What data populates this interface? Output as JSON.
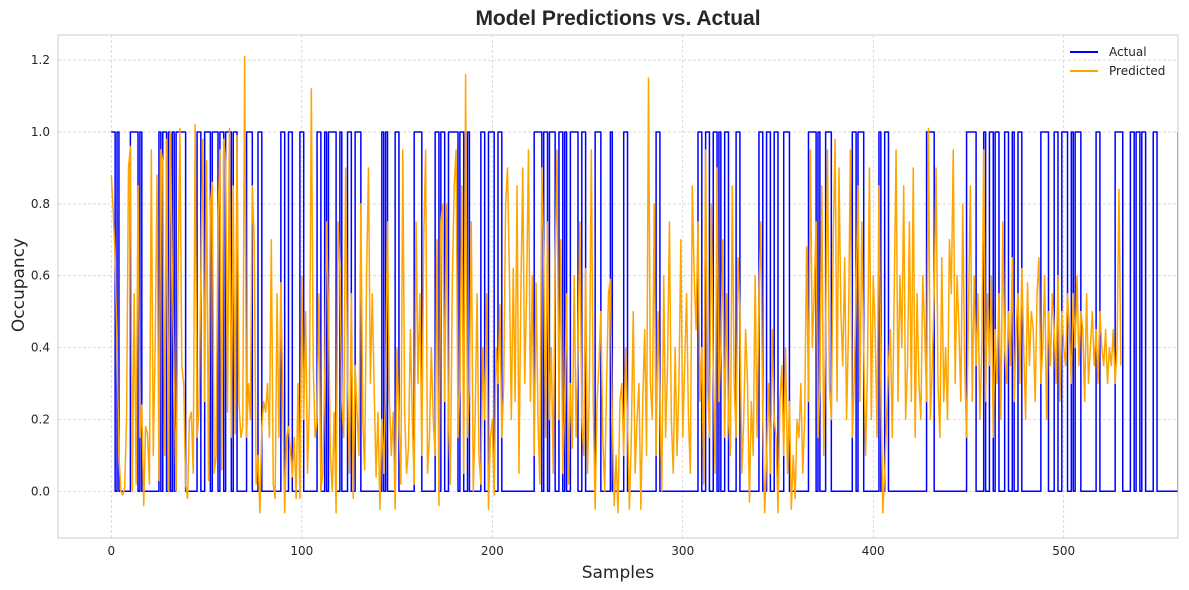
{
  "chart_data": {
    "type": "line",
    "title": "Model Predictions vs. Actual",
    "xlabel": "Samples",
    "ylabel": "Occupancy",
    "xlim": [
      -28,
      560
    ],
    "ylim": [
      -0.13,
      1.27
    ],
    "xticks": [
      0,
      100,
      200,
      300,
      400,
      500
    ],
    "yticks": [
      0.0,
      0.2,
      0.4,
      0.6,
      0.8,
      1.0,
      1.2
    ],
    "grid": true,
    "legend": "top-right",
    "series": [
      {
        "name": "Actual",
        "color": "#0000ff",
        "style": "step",
        "values": [
          1,
          1,
          0,
          1,
          0,
          0,
          0,
          0,
          0,
          0,
          1,
          1,
          1,
          1,
          0,
          1,
          0,
          0,
          0,
          0,
          0,
          0,
          0,
          0,
          0,
          1,
          0,
          1,
          1,
          0,
          1,
          0,
          1,
          0,
          1,
          1,
          1,
          1,
          1,
          0,
          0,
          0,
          0,
          0,
          0,
          1,
          1,
          0,
          0,
          1,
          1,
          1,
          0,
          1,
          1,
          1,
          0,
          1,
          1,
          0,
          1,
          1,
          1,
          0,
          1,
          1,
          0,
          0,
          0,
          0,
          0,
          1,
          1,
          1,
          0,
          0,
          0,
          1,
          1,
          0,
          0,
          0,
          0,
          0,
          0,
          0,
          0,
          0,
          0,
          1,
          1,
          0,
          0,
          1,
          1,
          0,
          0,
          0,
          0,
          1,
          1,
          0,
          0,
          0,
          0,
          0,
          0,
          0,
          1,
          1,
          0,
          0,
          1,
          0,
          1,
          1,
          1,
          1,
          0,
          0,
          1,
          0,
          0,
          0,
          1,
          1,
          0,
          0,
          1,
          1,
          1,
          0,
          0,
          0,
          0,
          0,
          0,
          0,
          0,
          0,
          0,
          0,
          1,
          0,
          1,
          0,
          0,
          0,
          0,
          1,
          1,
          0,
          0,
          0,
          0,
          0,
          0,
          0,
          0,
          1,
          1,
          1,
          1,
          0,
          0,
          0,
          0,
          0,
          0,
          0,
          1,
          1,
          0,
          1,
          1,
          0,
          0,
          1,
          1,
          1,
          1,
          1,
          0,
          1,
          1,
          0,
          0,
          1,
          0,
          0,
          0,
          0,
          0,
          0,
          1,
          1,
          0,
          0,
          1,
          1,
          1,
          0,
          0,
          1,
          1,
          0,
          0,
          0,
          0,
          0,
          0,
          0,
          0,
          0,
          0,
          0,
          0,
          0,
          0,
          0,
          0,
          0,
          1,
          1,
          1,
          1,
          0,
          1,
          1,
          0,
          1,
          1,
          1,
          0,
          0,
          1,
          1,
          0,
          1,
          0,
          0,
          1,
          1,
          1,
          1,
          0,
          0,
          1,
          1,
          0,
          0,
          0,
          0,
          0,
          1,
          1,
          1,
          0,
          0,
          0,
          0,
          0,
          1,
          0,
          0,
          0,
          0,
          0,
          0,
          1,
          1,
          0,
          0,
          0,
          0,
          0,
          0,
          0,
          0,
          0,
          0,
          0,
          0,
          0,
          0,
          0,
          1,
          1,
          0,
          0,
          0,
          0,
          0,
          0,
          0,
          0,
          0,
          0,
          0,
          0,
          0,
          0,
          0,
          0,
          0,
          0,
          0,
          0,
          1,
          1,
          0,
          0,
          1,
          1,
          0,
          0,
          1,
          1,
          0,
          1,
          0,
          0,
          1,
          1,
          0,
          0,
          0,
          0,
          1,
          1,
          0,
          0,
          0,
          0,
          0,
          0,
          0,
          0,
          0,
          0,
          1,
          1,
          0,
          0,
          1,
          1,
          0,
          0,
          1,
          1,
          0,
          0,
          0,
          1,
          1,
          1,
          0,
          0,
          0,
          0,
          0,
          0,
          0,
          0,
          0,
          0,
          1,
          1,
          1,
          1,
          0,
          1,
          0,
          0,
          0,
          1,
          1,
          1,
          0,
          0,
          0,
          0,
          0,
          0,
          0,
          0,
          0,
          0,
          0,
          1,
          1,
          0,
          1,
          1,
          1,
          0,
          0,
          0,
          0,
          0,
          0,
          0,
          0,
          1,
          0,
          0,
          1,
          1,
          0,
          0,
          0,
          0,
          0,
          0,
          0,
          0,
          0,
          0,
          0,
          0,
          0,
          0,
          0,
          0,
          0,
          0,
          0,
          0,
          1,
          1,
          1,
          1,
          0,
          0,
          0,
          0,
          0,
          0,
          0,
          0,
          0,
          0,
          0,
          0,
          0,
          0,
          0,
          0,
          0,
          1,
          1,
          1,
          1,
          1,
          0,
          0,
          0,
          0,
          1,
          0,
          0,
          1,
          1,
          0,
          1,
          1,
          0,
          0,
          0,
          1,
          1,
          0,
          0,
          1,
          0,
          0,
          1,
          1,
          0,
          0,
          0,
          0,
          0,
          0,
          0,
          0,
          0,
          0,
          1,
          1,
          1,
          1,
          0,
          0,
          0,
          1,
          1,
          0,
          0,
          1,
          1,
          1,
          0,
          0,
          1,
          0,
          1,
          1,
          1,
          0,
          0,
          0,
          0,
          0,
          0,
          0,
          0,
          1,
          1,
          0,
          0,
          0,
          0,
          0,
          0,
          0,
          0,
          1,
          1,
          1,
          1,
          0,
          0,
          0,
          0,
          1,
          1,
          0,
          1,
          1,
          0,
          1,
          1,
          0,
          0,
          0,
          0,
          1,
          1,
          0,
          0,
          0,
          0,
          0,
          0,
          0,
          0,
          0,
          0,
          0,
          1,
          1
        ]
      },
      {
        "name": "Predicted",
        "color": "#ffa500",
        "style": "line",
        "values": [
          0.88,
          0.78,
          0.65,
          0.4,
          0.1,
          0.0,
          -0.01,
          0.01,
          0.2,
          0.9,
          0.96,
          0.0,
          0.55,
          0.02,
          0.85,
          0.15,
          0.24,
          -0.04,
          0.18,
          0.16,
          0.02,
          0.95,
          0.1,
          0.4,
          0.88,
          0.03,
          0.95,
          0.92,
          0.1,
          0.98,
          0.0,
          1.0,
          0.62,
          0.3,
          0.0,
          0.58,
          1.01,
          0.35,
          0.3,
          0.02,
          -0.02,
          0.2,
          0.22,
          0.05,
          1.02,
          0.15,
          0.22,
          0.6,
          0.98,
          0.25,
          0.92,
          0.03,
          0.8,
          0.86,
          0.05,
          0.1,
          0.75,
          0.95,
          0.06,
          0.98,
          0.92,
          0.22,
          1.01,
          0.15,
          0.85,
          0.16,
          0.99,
          0.25,
          0.15,
          0.18,
          1.21,
          0.15,
          0.3,
          0.2,
          0.85,
          0.7,
          0.02,
          0.1,
          -0.06,
          0.18,
          0.25,
          0.22,
          0.3,
          0.15,
          0.7,
          0.02,
          -0.02,
          0.55,
          0.15,
          0.58,
          0.25,
          -0.06,
          0.15,
          0.18,
          0.12,
          0.04,
          0.15,
          -0.02,
          0.3,
          -0.02,
          0.6,
          0.2,
          0.5,
          0.05,
          0.25,
          1.12,
          0.35,
          0.15,
          0.2,
          0.55,
          0.0,
          0.05,
          0.3,
          0.75,
          0.5,
          0.1,
          0.0,
          0.22,
          -0.06,
          0.75,
          0.62,
          0.25,
          0.15,
          0.9,
          0.32,
          0.05,
          0.55,
          -0.02,
          0.35,
          0.22,
          0.1,
          0.8,
          0.2,
          0.06,
          0.6,
          0.9,
          0.3,
          0.55,
          0.28,
          0.04,
          0.22,
          -0.05,
          0.2,
          0.05,
          0.3,
          0.75,
          0.25,
          0.1,
          0.22,
          -0.05,
          0.4,
          0.2,
          0.02,
          0.95,
          0.22,
          0.05,
          0.12,
          0.45,
          0.2,
          0.02,
          0.75,
          0.3,
          0.55,
          0.1,
          0.7,
          0.95,
          0.05,
          0.15,
          0.4,
          0.2,
          0.1,
          0.7,
          -0.04,
          0.75,
          0.8,
          0.25,
          0.8,
          0.2,
          0.02,
          0.58,
          0.85,
          0.95,
          0.15,
          0.3,
          0.85,
          0.05,
          1.16,
          0.15,
          0.3,
          0.75,
          0.0,
          0.2,
          0.55,
          0.1,
          0.02,
          0.4,
          0.2,
          0.55,
          -0.05,
          0.15,
          0.2,
          -0.01,
          0.4,
          0.3,
          0.52,
          0.15,
          0.3,
          0.8,
          0.9,
          0.6,
          0.2,
          0.62,
          0.25,
          0.85,
          0.05,
          0.55,
          0.9,
          0.3,
          0.55,
          0.95,
          0.25,
          0.6,
          0.1,
          0.58,
          0.2,
          0.02,
          0.9,
          0.65,
          0.15,
          0.75,
          0.2,
          0.4,
          0.05,
          0.62,
          0.95,
          0.2,
          0.7,
          0.05,
          0.25,
          0.55,
          0.02,
          0.3,
          0.12,
          0.6,
          0.15,
          0.4,
          0.75,
          0.2,
          0.1,
          0.62,
          0.05,
          0.3,
          0.95,
          0.25,
          -0.05,
          0.25,
          0.35,
          0.5,
          0.15,
          0.0,
          0.3,
          0.55,
          0.59,
          0.2,
          -0.04,
          0.1,
          -0.06,
          0.25,
          0.3,
          0.1,
          0.4,
          0.2,
          -0.05,
          0.15,
          0.5,
          0.05,
          0.2,
          0.3,
          -0.05,
          0.25,
          0.45,
          0.1,
          1.15,
          0.3,
          0.2,
          0.8,
          0.1,
          0.5,
          0.25,
          0.0,
          0.6,
          0.15,
          0.35,
          0.75,
          0.2,
          0.05,
          0.4,
          0.1,
          0.3,
          0.7,
          0.15,
          0.35,
          0.55,
          0.2,
          0.05,
          0.85,
          0.6,
          0.45,
          0.75,
          0.25,
          0.4,
          0.02,
          0.95,
          0.3,
          0.15,
          0.8,
          0.35,
          0.05,
          0.9,
          0.25,
          0.4,
          0.7,
          0.15,
          0.55,
          0.2,
          0.1,
          0.85,
          0.3,
          0.15,
          0.65,
          0.5,
          0.05,
          0.2,
          0.45,
          0.3,
          -0.03,
          0.25,
          0.1,
          0.6,
          0.15,
          0.55,
          0.75,
          0.2,
          -0.06,
          0.1,
          0.3,
          0.05,
          0.45,
          0.2,
          0.15,
          -0.06,
          0.25,
          0.35,
          0.1,
          0.4,
          0.05,
          0.25,
          -0.05,
          0.1,
          -0.02,
          0.2,
          0.15,
          0.3,
          0.05,
          0.2,
          0.68,
          0.25,
          0.95,
          0.4,
          0.55,
          0.75,
          0.15,
          0.3,
          0.85,
          0.1,
          0.45,
          0.95,
          0.3,
          0.2,
          0.7,
          0.98,
          0.25,
          0.9,
          0.5,
          0.35,
          0.65,
          0.2,
          0.45,
          0.95,
          0.15,
          0.3,
          0.55,
          0.85,
          0.25,
          0.75,
          0.4,
          0.1,
          0.35,
          0.9,
          0.2,
          0.6,
          0.45,
          0.15,
          0.85,
          0.3,
          -0.06,
          0.05,
          0.2,
          0.35,
          0.45,
          0.15,
          0.55,
          0.95,
          0.25,
          0.6,
          0.4,
          0.85,
          0.2,
          0.35,
          0.75,
          0.25,
          0.9,
          0.15,
          0.55,
          0.3,
          0.2,
          0.6,
          0.45,
          0.25,
          1.01,
          0.2,
          0.35,
          0.55,
          0.9,
          0.3,
          0.15,
          0.65,
          0.25,
          0.4,
          0.2,
          0.7,
          0.55,
          0.95,
          0.3,
          0.6,
          0.45,
          0.25,
          0.8,
          0.35,
          0.15,
          0.5,
          0.85,
          0.25,
          0.6,
          0.35,
          0.55,
          0.2,
          0.4,
          0.95,
          0.25,
          0.55,
          0.35,
          0.6,
          0.15,
          0.45,
          0.3,
          0.55,
          0.2,
          0.75,
          0.4,
          0.3,
          0.5,
          0.35,
          0.65,
          0.25,
          0.45,
          0.55,
          0.3,
          0.62,
          0.4,
          0.2,
          0.58,
          0.35,
          0.5,
          0.45,
          0.25,
          0.55,
          0.65,
          0.3,
          0.4,
          0.6,
          0.2,
          0.5,
          0.35,
          0.55,
          0.45,
          0.3,
          0.6,
          0.25,
          0.5,
          0.4,
          0.35,
          0.55,
          0.45,
          0.3,
          0.55,
          0.4,
          0.6,
          0.35,
          0.5,
          0.45,
          0.25,
          0.55,
          0.3,
          0.4,
          0.5,
          0.35,
          0.45,
          0.3,
          0.5,
          0.4,
          0.35,
          0.45,
          0.3,
          0.4,
          0.35,
          0.45,
          0.3,
          0.4,
          0.84,
          0.35
        ]
      }
    ]
  }
}
